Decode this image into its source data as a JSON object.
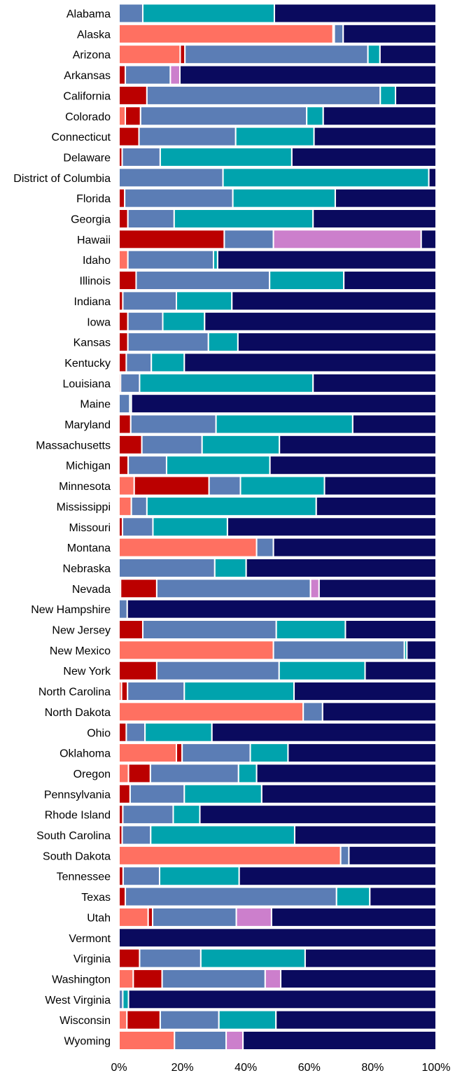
{
  "chart_data": {
    "type": "bar",
    "orientation": "horizontal",
    "stacked": true,
    "normalized": true,
    "title": "",
    "xlabel": "",
    "ylabel": "",
    "xlim": [
      0,
      100
    ],
    "xticks": [
      "0%",
      "20%",
      "40%",
      "60%",
      "80%",
      "100%"
    ],
    "grid": false,
    "legend": "none",
    "categories": [
      "Alabama",
      "Alaska",
      "Arizona",
      "Arkansas",
      "California",
      "Colorado",
      "Connecticut",
      "Delaware",
      "District of Columbia",
      "Florida",
      "Georgia",
      "Hawaii",
      "Idaho",
      "Illinois",
      "Indiana",
      "Iowa",
      "Kansas",
      "Kentucky",
      "Louisiana",
      "Maine",
      "Maryland",
      "Massachusetts",
      "Michigan",
      "Minnesota",
      "Mississippi",
      "Missouri",
      "Montana",
      "Nebraska",
      "Nevada",
      "New Hampshire",
      "New Jersey",
      "New Mexico",
      "New York",
      "North Carolina",
      "North Dakota",
      "Ohio",
      "Oklahoma",
      "Oregon",
      "Pennsylvania",
      "Rhode Island",
      "South Carolina",
      "South Dakota",
      "Tennessee",
      "Texas",
      "Utah",
      "Vermont",
      "Virginia",
      "Washington",
      "West Virginia",
      "Wisconsin",
      "Wyoming"
    ],
    "colors": [
      "#ff7061",
      "#bb0000",
      "#5b7db5",
      "#00a3ad",
      "#cc7fcc",
      "#0a0a5e"
    ],
    "series": [
      {
        "values": [
          0.3,
          0.2,
          0.3,
          0.3,
          0.3,
          0.2,
          0.3,
          0.3,
          0.2,
          0.3,
          0.3,
          0.3,
          0.3,
          0.2,
          0.2,
          0.2,
          0.2,
          0.3,
          0.3,
          0.3,
          0.3,
          0.3,
          0.2,
          0.3,
          0.2,
          0.3,
          0.3,
          0.3,
          0.3,
          0.2,
          0.3,
          0.3,
          0.3,
          0.3,
          0.3,
          0.3,
          0.3,
          0.3,
          0.3,
          0.3,
          0.3,
          0.3,
          0.3,
          0.3,
          0.3,
          0.3,
          0.3,
          0.3,
          0.3,
          0.3,
          0.3
        ],
        "_note": "placeholder"
      }
    ]
  },
  "bars": [
    [
      0,
      0,
      7.5,
      41.5,
      0,
      51
    ],
    [
      67.5,
      0.4,
      2.8,
      0,
      0,
      29.3
    ],
    [
      19.3,
      1.5,
      57.7,
      3.8,
      0,
      17.7
    ],
    [
      0,
      2,
      14.2,
      0,
      3,
      80.8
    ],
    [
      0,
      8.8,
      73.6,
      4.8,
      0,
      12.8
    ],
    [
      2,
      4.8,
      52.4,
      5.2,
      0,
      35.6
    ],
    [
      0,
      6.3,
      30.5,
      24.7,
      0,
      38.5
    ],
    [
      0,
      1,
      12,
      41.5,
      0,
      45.5
    ],
    [
      0,
      0,
      32.8,
      64.9,
      0,
      2.3
    ],
    [
      0,
      1.8,
      34.1,
      32.3,
      0,
      31.8
    ],
    [
      0,
      2.8,
      14.6,
      43.8,
      0,
      38.8
    ],
    [
      0,
      33.2,
      15.5,
      0,
      46.6,
      4.7
    ],
    [
      2.8,
      0,
      27,
      1.3,
      0,
      68.9
    ],
    [
      0,
      5.4,
      42.1,
      23.4,
      0,
      29.1
    ],
    [
      0,
      1.2,
      16.9,
      17.5,
      0,
      64.4
    ],
    [
      0,
      2.8,
      11,
      13.2,
      0,
      73
    ],
    [
      0,
      2.8,
      25.4,
      9.3,
      0,
      62.5
    ],
    [
      0,
      2.3,
      7.9,
      10.4,
      0,
      79.4
    ],
    [
      0,
      0.5,
      6,
      54.7,
      0,
      38.8
    ],
    [
      0,
      0,
      3.4,
      0.5,
      0,
      96.1
    ],
    [
      0,
      3.7,
      26.9,
      43.1,
      0,
      26.3
    ],
    [
      0,
      7.2,
      19,
      24.4,
      0,
      49.4
    ],
    [
      0,
      2.9,
      12.1,
      32.6,
      0,
      52.4
    ],
    [
      4.8,
      23.6,
      9.9,
      26.5,
      0,
      35.2
    ],
    [
      3.9,
      0,
      4.9,
      53.4,
      0,
      37.8
    ],
    [
      0,
      1.1,
      9.6,
      23.5,
      0,
      65.8
    ],
    [
      43.4,
      0,
      5.3,
      0,
      0,
      51.3
    ],
    [
      0,
      0,
      30.2,
      9.9,
      0,
      59.9
    ],
    [
      0.5,
      11.4,
      48.5,
      0,
      2.7,
      36.9
    ],
    [
      0,
      0,
      2.6,
      0,
      0,
      97.4
    ],
    [
      0,
      7.5,
      42.1,
      21.8,
      0,
      28.6
    ],
    [
      48.7,
      0,
      41.3,
      0.8,
      0,
      9.2
    ],
    [
      0,
      11.9,
      38.6,
      27.1,
      0,
      22.4
    ],
    [
      0.8,
      1.9,
      17.9,
      34.6,
      0,
      44.8
    ],
    [
      58.1,
      0,
      6.1,
      0,
      0,
      35.8
    ],
    [
      0,
      2.3,
      5.9,
      21.1,
      0,
      70.7
    ],
    [
      18.1,
      1.8,
      21.5,
      11.9,
      0,
      46.7
    ],
    [
      3,
      6.9,
      27.8,
      5.7,
      0,
      56.6
    ],
    [
      0,
      3.5,
      17.1,
      24.4,
      0,
      55
    ],
    [
      0,
      1.2,
      15.9,
      8.4,
      0,
      74.5
    ],
    [
      0,
      1,
      9,
      45.4,
      0,
      44.6
    ],
    [
      69.9,
      0,
      2.6,
      0,
      0,
      27.5
    ],
    [
      0,
      1.3,
      11.5,
      25.1,
      0,
      62.1
    ],
    [
      0,
      2,
      66.6,
      10.5,
      0,
      20.9
    ],
    [
      9.2,
      1.4,
      26.4,
      0,
      11.1,
      51.9
    ],
    [
      0,
      0,
      0,
      0,
      0,
      100
    ],
    [
      0,
      6.5,
      19.3,
      32.9,
      0,
      41.3
    ],
    [
      4.5,
      9.1,
      32.5,
      0,
      4.9,
      49
    ],
    [
      0,
      0,
      1.2,
      1.8,
      0,
      97
    ],
    [
      2.5,
      10.5,
      18.5,
      18,
      0,
      50.5
    ],
    [
      17.5,
      0,
      16.3,
      0,
      5.3,
      60.9
    ]
  ]
}
